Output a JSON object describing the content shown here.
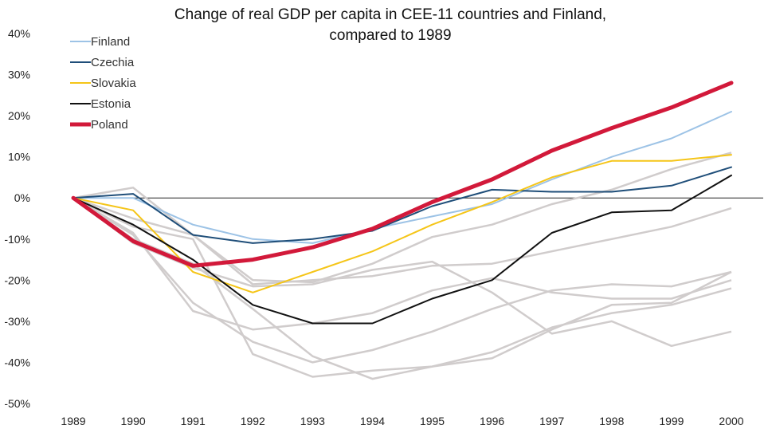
{
  "chart_data": {
    "type": "line",
    "title_line1": "Change of real GDP per capita in CEE-11 countries and Finland,",
    "title_line2": "compared to 1989",
    "xlabel": "",
    "ylabel": "",
    "ylim": [
      -50,
      40
    ],
    "y_ticks": [
      "40%",
      "30%",
      "20%",
      "10%",
      "0%",
      "-10%",
      "-20%",
      "-30%",
      "-40%",
      "-50%"
    ],
    "y_tick_values": [
      40,
      30,
      20,
      10,
      0,
      -10,
      -20,
      -30,
      -40,
      -50
    ],
    "x": [
      "1989",
      "1990",
      "1991",
      "1992",
      "1993",
      "1994",
      "1995",
      "1996",
      "1997",
      "1998",
      "1999",
      "2000"
    ],
    "grid": false,
    "legend_position": "top-left",
    "series": [
      {
        "name": "Finland",
        "color": "#9dc3e6",
        "highlight": true,
        "values": [
          0,
          0,
          -6.5,
          -10,
          -11,
          -7.5,
          -4.5,
          -1.5,
          4.5,
          10,
          14.5,
          21
        ]
      },
      {
        "name": "Czechia",
        "color": "#1f4e79",
        "highlight": true,
        "values": [
          0,
          1,
          -9,
          -11,
          -10,
          -8,
          -2,
          2,
          1.5,
          1.5,
          3,
          7.5
        ]
      },
      {
        "name": "Slovakia",
        "color": "#f5c518",
        "highlight": true,
        "values": [
          0,
          -3,
          -18,
          -23,
          -18,
          -13,
          -6.5,
          -1,
          5,
          9,
          9,
          10.5
        ]
      },
      {
        "name": "Estonia",
        "color": "#111111",
        "highlight": true,
        "values": [
          0,
          -6.5,
          -15,
          -26,
          -30.5,
          -30.5,
          -24.5,
          -20,
          -8.5,
          -3.5,
          -3,
          5.5
        ]
      },
      {
        "name": "Poland",
        "color": "#d2193a",
        "highlight": true,
        "values": [
          0,
          -10.5,
          -16.5,
          -15,
          -12,
          -7.5,
          -1,
          4.5,
          11.5,
          17,
          22,
          28
        ]
      },
      {
        "name": "",
        "color": "#d0cccc",
        "highlight": false,
        "values": [
          0,
          2.5,
          -9,
          -20,
          -20.5,
          -16,
          -9.5,
          -6.5,
          -1.5,
          2,
          7,
          11
        ]
      },
      {
        "name": "",
        "color": "#d0cccc",
        "highlight": false,
        "values": [
          0,
          -5,
          -9,
          -21,
          -20,
          -19,
          -16.5,
          -16,
          -13,
          -10,
          -7,
          -2.5
        ]
      },
      {
        "name": "",
        "color": "#d0cccc",
        "highlight": false,
        "values": [
          0,
          -7,
          -10,
          -38,
          -43.5,
          -42,
          -41,
          -39,
          -32,
          -26,
          -25.5,
          -18
        ]
      },
      {
        "name": "",
        "color": "#d0cccc",
        "highlight": false,
        "values": [
          0,
          -8.5,
          -27.5,
          -32,
          -30.5,
          -28,
          -22.5,
          -19.5,
          -23,
          -24.5,
          -24.5,
          -20
        ]
      },
      {
        "name": "",
        "color": "#d0cccc",
        "highlight": false,
        "values": [
          0,
          -9,
          -25.5,
          -35,
          -40,
          -37,
          -32.5,
          -27,
          -22.5,
          -21,
          -21.5,
          -18
        ]
      },
      {
        "name": "",
        "color": "#d0cccc",
        "highlight": false,
        "values": [
          0,
          -10,
          -16,
          -27,
          -38.5,
          -44,
          -41,
          -37.5,
          -31.5,
          -28,
          -26,
          -22
        ]
      },
      {
        "name": "",
        "color": "#d0cccc",
        "highlight": false,
        "values": [
          0,
          -11,
          -17,
          -21.5,
          -21,
          -17.5,
          -15.5,
          -23,
          -33,
          -30,
          -36,
          -32.5
        ]
      }
    ]
  }
}
